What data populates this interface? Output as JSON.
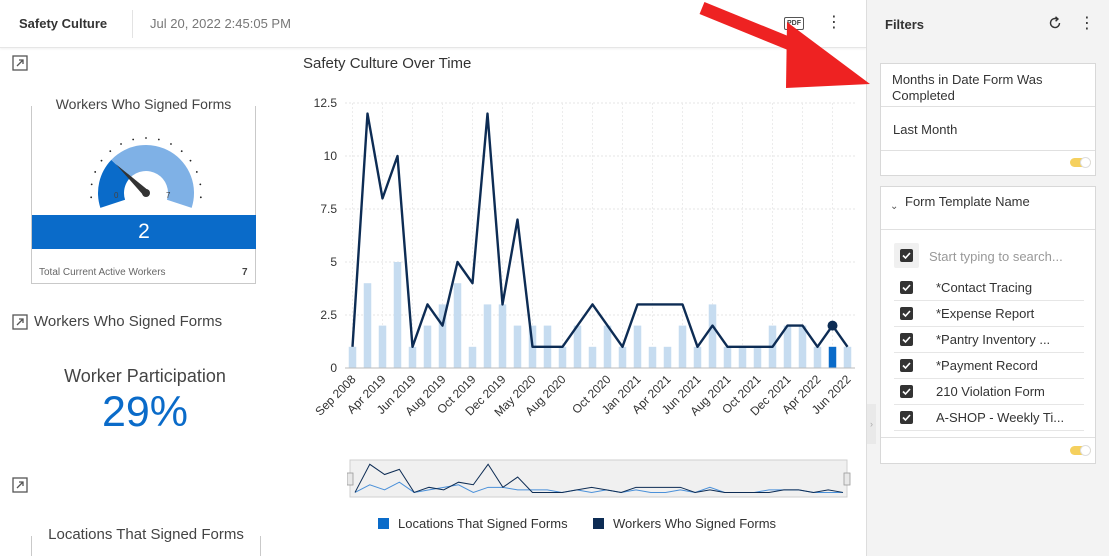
{
  "header": {
    "app_title": "Safety Culture",
    "timestamp": "Jul 20, 2022 2:45:05 PM",
    "pdf_label": "PDF",
    "more_glyph": "⋮"
  },
  "gauge_widget": {
    "title": "Workers Who Signed Forms",
    "min": "0",
    "max": "7",
    "value": "2",
    "value_fraction": 0.2857,
    "footer_label": "Total Current Active Workers",
    "footer_value": "7",
    "colors": {
      "filled": "#0a6bc9",
      "unfilled": "#7fb1e6",
      "needle": "#333333"
    }
  },
  "participation_widget": {
    "title": "Workers Who Signed Forms",
    "label": "Worker Participation",
    "value": "29%",
    "color": "#0a6bc9"
  },
  "locations_widget": {
    "title": "Locations That Signed Forms"
  },
  "chart_data": {
    "type": "bar",
    "title": "Safety Culture Over Time",
    "xlabel": "",
    "ylabel": "",
    "ylim": [
      0,
      12.5
    ],
    "yticks": [
      "0",
      "2.5",
      "5",
      "7.5",
      "10",
      "12.5"
    ],
    "grid": true,
    "legend_position": "bottom",
    "x_tick_labels": [
      "Sep 2008",
      "Apr 2019",
      "Jun 2019",
      "Aug 2019",
      "Oct 2019",
      "Dec 2019",
      "May 2020",
      "Aug 2020",
      "Oct 2020",
      "Jan 2021",
      "Apr 2021",
      "Jun 2021",
      "Aug 2021",
      "Oct 2021",
      "Dec 2021",
      "Apr 2022",
      "Jun 2022"
    ],
    "series": [
      {
        "name": "Locations That Signed Forms",
        "kind": "bar",
        "color": "#c6dcf0",
        "highlight_color": "#0a6bc9",
        "values": [
          1,
          4,
          2,
          5,
          1,
          2,
          3,
          4,
          1,
          3,
          3,
          2,
          2,
          2,
          1,
          2,
          1,
          2,
          1,
          2,
          1,
          1,
          2,
          1,
          3,
          1,
          1,
          1,
          2,
          2,
          2,
          1,
          1,
          1
        ]
      },
      {
        "name": "Workers Who Signed Forms",
        "kind": "line",
        "color": "#0d2c54",
        "values": [
          1,
          12,
          8,
          10,
          1,
          3,
          2,
          5,
          4,
          12,
          3,
          7,
          1,
          1,
          1,
          2,
          3,
          2,
          1,
          3,
          3,
          3,
          3,
          1,
          2,
          1,
          1,
          1,
          1,
          2,
          2,
          1,
          2,
          1
        ]
      }
    ],
    "highlight_index": 32
  },
  "filters": {
    "title": "Filters",
    "date_filter": {
      "title": "Months in Date Form Was Completed",
      "value": "Last Month"
    },
    "template_filter": {
      "title": "Form Template Name",
      "search_placeholder": "Start typing to search...",
      "options": [
        {
          "label": "*Contact Tracing",
          "checked": true
        },
        {
          "label": "*Expense Report",
          "checked": true
        },
        {
          "label": "*Pantry Inventory ...",
          "checked": true
        },
        {
          "label": "*Payment Record",
          "checked": true
        },
        {
          "label": "210 Violation Form",
          "checked": true
        },
        {
          "label": "A-SHOP - Weekly Ti...",
          "checked": true
        }
      ]
    },
    "toggle_color": "#f5d05e"
  },
  "annotation": {
    "arrow_color": "#ee2222"
  }
}
